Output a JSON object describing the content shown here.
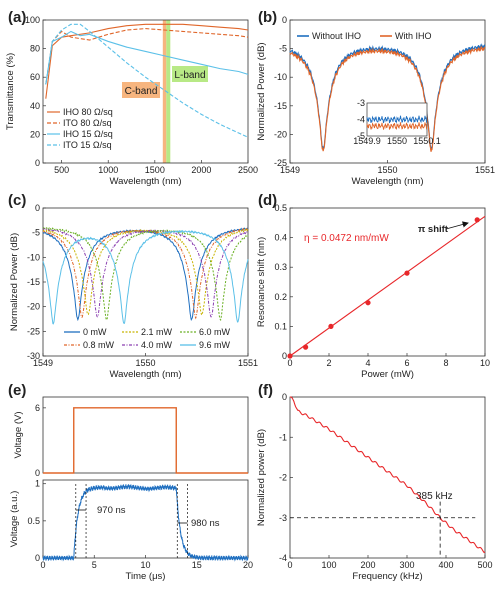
{
  "colors": {
    "blue": "#1f6fc0",
    "orange": "#e0662a",
    "lightblue": "#5bc0e8",
    "red": "#e8272a",
    "cband": "#f7b57f",
    "lband": "#b8e986"
  },
  "panels": {
    "a": {
      "label": "(a)",
      "band_c": "C-band",
      "band_l": "L-band"
    },
    "b": {
      "label": "(b)"
    },
    "c": {
      "label": "(c)"
    },
    "d": {
      "label": "(d)",
      "eta": "η = 0.0472 nm/mW",
      "annotation": "π shift"
    },
    "e": {
      "label": "(e)",
      "ann_rise": "970 ns",
      "ann_fall": "980 ns"
    },
    "f": {
      "label": "(f)",
      "annotation": "385 kHz"
    }
  },
  "chart_data": [
    {
      "id": "a",
      "type": "line",
      "xlabel": "Wavelength (nm)",
      "ylabel": "Transmittance (%)",
      "xlim": [
        300,
        2500
      ],
      "ylim": [
        0,
        100
      ],
      "xticks": [
        "500",
        "1000",
        "1500",
        "2000",
        "2500"
      ],
      "yticks": [
        "0",
        "20",
        "40",
        "60",
        "80",
        "100"
      ],
      "legend_placement": "lower-left",
      "series": [
        {
          "name": "IHO 80 Ω/sq",
          "x": [
            330,
            400,
            500,
            600,
            800,
            1000,
            1200,
            1400,
            1600,
            1800,
            2000,
            2200,
            2400,
            2500
          ],
          "y": [
            45,
            82,
            88,
            89,
            91,
            94,
            96,
            97,
            97,
            97,
            96,
            95,
            94,
            93
          ]
        },
        {
          "name": "ITO 80 Ω/sq",
          "x": [
            330,
            400,
            500,
            600,
            800,
            1000,
            1200,
            1400,
            1600,
            1800,
            2000,
            2200,
            2400,
            2500
          ],
          "y": [
            55,
            85,
            92,
            88,
            86,
            90,
            93,
            94,
            93,
            92,
            91,
            90,
            89,
            88
          ]
        },
        {
          "name": "IHO 15 Ω/sq",
          "x": [
            330,
            400,
            500,
            600,
            700,
            800,
            1000,
            1200,
            1400,
            1600,
            1800,
            2000,
            2200,
            2400,
            2500
          ],
          "y": [
            55,
            85,
            88,
            92,
            89,
            90,
            85,
            81,
            78,
            75,
            72,
            69,
            66,
            64,
            62
          ]
        },
        {
          "name": "ITO 15 Ω/sq",
          "x": [
            330,
            400,
            500,
            600,
            700,
            800,
            1000,
            1200,
            1400,
            1600,
            1800,
            2000,
            2200,
            2400,
            2500
          ],
          "y": [
            55,
            85,
            93,
            97,
            97,
            92,
            81,
            70,
            60,
            51,
            42,
            34,
            27,
            21,
            18
          ]
        }
      ]
    },
    {
      "id": "b",
      "type": "line",
      "xlabel": "Wavelength (nm)",
      "ylabel": "Normalized Power (dB)",
      "xlim": [
        1549,
        1551
      ],
      "ylim": [
        -25,
        0
      ],
      "xticks": [
        "1549",
        "1550",
        "1551"
      ],
      "yticks": [
        "-25",
        "-20",
        "-15",
        "-10",
        "-5",
        "0"
      ],
      "legend_placement": "top",
      "resonances": [
        1549.34,
        1550.45
      ],
      "series": [
        {
          "name": "Without IHO",
          "baseline_db": -4.0,
          "dip_db": -22.5
        },
        {
          "name": "With IHO",
          "baseline_db": -4.4,
          "dip_db": -22.8
        }
      ],
      "inset": {
        "xlim": [
          1549.9,
          1550.1
        ],
        "ylim": [
          -5,
          -3
        ],
        "xticks": [
          "1549.9",
          "1550",
          "1550.1"
        ],
        "yticks": [
          "-3",
          "-4",
          "-5"
        ]
      }
    },
    {
      "id": "c",
      "type": "line",
      "xlabel": "Wavelength (nm)",
      "ylabel": "Normalized Power (dB)",
      "xlim": [
        1549,
        1551
      ],
      "ylim": [
        -30,
        0
      ],
      "xticks": [
        "1549",
        "1550",
        "1551"
      ],
      "yticks": [
        "-30",
        "-25",
        "-20",
        "-15",
        "-10",
        "-5",
        "0"
      ],
      "legend_placement": "bottom",
      "series": [
        {
          "name": "0 mW",
          "resonances": [
            1549.34,
            1550.45
          ],
          "dip_db": -22.5
        },
        {
          "name": "0.8 mW",
          "resonances": [
            1549.38,
            1550.49
          ],
          "dip_db": -22
        },
        {
          "name": "2.1 mW",
          "resonances": [
            1549.44,
            1550.55
          ],
          "dip_db": -21.5
        },
        {
          "name": "4.0 mW",
          "resonances": [
            1549.53,
            1550.64
          ],
          "dip_db": -22
        },
        {
          "name": "6.0 mW",
          "resonances": [
            1549.62,
            1550.73
          ],
          "dip_db": -22.5
        },
        {
          "name": "9.6 mW",
          "resonances": [
            1549.1,
            1549.79,
            1550.9
          ],
          "dip_db": -23
        }
      ]
    },
    {
      "id": "d",
      "type": "scatter",
      "xlabel": "Power (mW)",
      "ylabel": "Resonance shift (nm)",
      "xlim": [
        0,
        10
      ],
      "ylim": [
        0,
        0.5
      ],
      "xticks": [
        "0",
        "2",
        "4",
        "6",
        "8",
        "10"
      ],
      "yticks": [
        "0",
        "0.1",
        "0.2",
        "0.3",
        "0.4",
        "0.5"
      ],
      "points": {
        "x": [
          0,
          0.8,
          2.1,
          4.0,
          6.0,
          9.6
        ],
        "y": [
          0,
          0.03,
          0.1,
          0.18,
          0.28,
          0.46
        ]
      },
      "fit": {
        "slope": 0.0472,
        "x": [
          0,
          10
        ]
      }
    },
    {
      "id": "e_top",
      "type": "line",
      "ylabel": "Voltage (V)",
      "xlim": [
        0,
        20
      ],
      "ylim": [
        0,
        7
      ],
      "yticks": [
        "0",
        "6"
      ],
      "series": [
        {
          "x": [
            0,
            3,
            3,
            13,
            13,
            20
          ],
          "y": [
            0,
            0,
            6,
            6,
            0,
            0
          ]
        }
      ]
    },
    {
      "id": "e_bottom",
      "type": "line",
      "xlabel": "Time (μs)",
      "ylabel": "Voltage (a.u.)",
      "xlim": [
        0,
        20
      ],
      "ylim": [
        0,
        1.05
      ],
      "xticks": [
        "0",
        "5",
        "10",
        "15",
        "20"
      ],
      "yticks": [
        "0",
        "0.5",
        "1"
      ],
      "series": [
        {
          "rise_start": 3,
          "fall_start": 13,
          "plateau": 0.95,
          "tau_us": 0.42
        }
      ],
      "markers": [
        3.2,
        4.2,
        13.1,
        14.1
      ]
    },
    {
      "id": "f",
      "type": "line",
      "xlabel": "Frequency (kHz)",
      "ylabel": "Normalized power (dB)",
      "xlim": [
        0,
        500
      ],
      "ylim": [
        -4,
        0
      ],
      "xticks": [
        "0",
        "100",
        "200",
        "300",
        "400",
        "500"
      ],
      "yticks": [
        "-4",
        "-3",
        "-2",
        "-1",
        "0"
      ],
      "series": [
        {
          "x": [
            0,
            10,
            20,
            50,
            100,
            150,
            200,
            250,
            300,
            350,
            385,
            420,
            450,
            500
          ],
          "y": [
            0,
            -0.1,
            -0.35,
            -0.5,
            -0.8,
            -1.15,
            -1.5,
            -1.85,
            -2.2,
            -2.65,
            -3.0,
            -3.3,
            -3.5,
            -3.85
          ]
        }
      ],
      "cutoff": {
        "x": 385,
        "y": -3
      }
    }
  ]
}
